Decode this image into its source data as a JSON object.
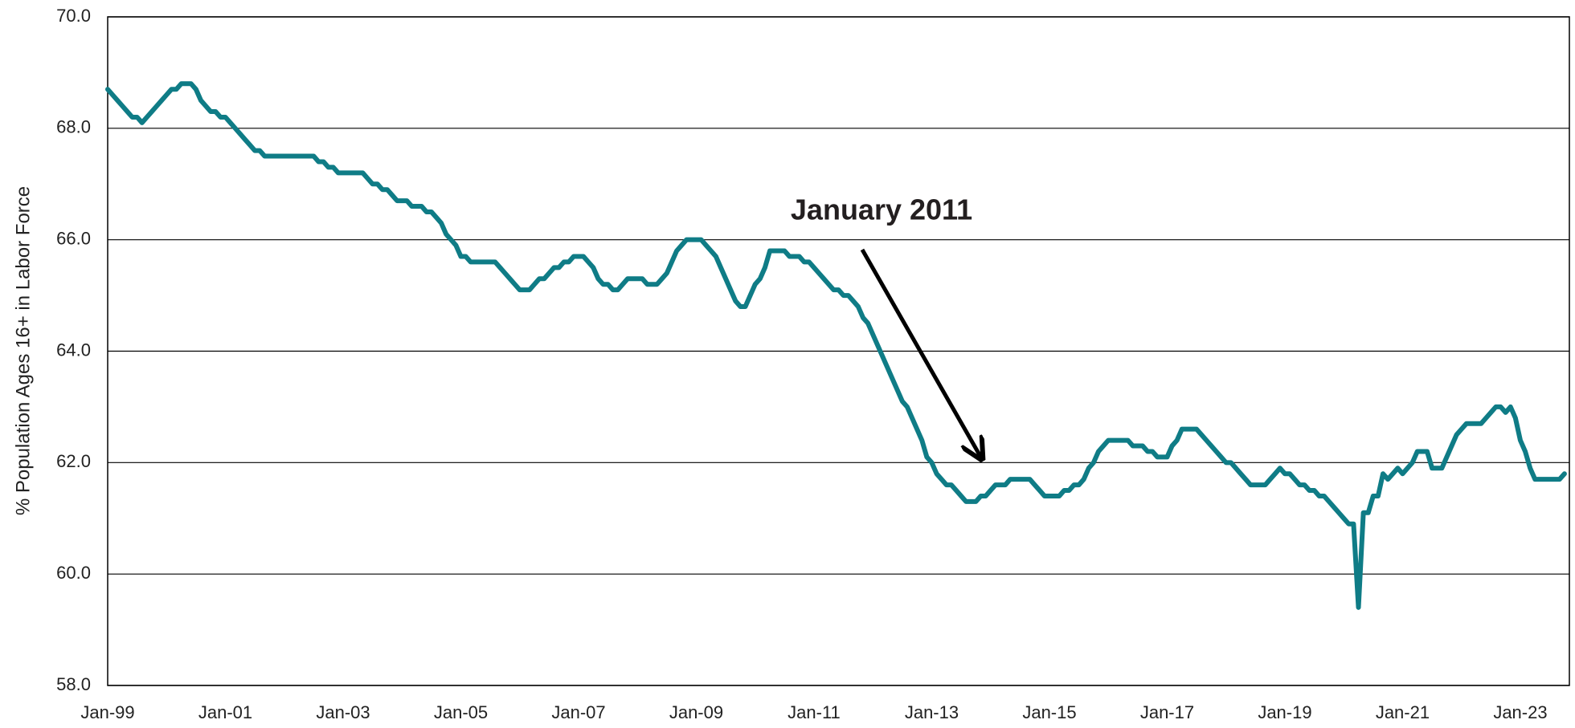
{
  "chart_data": {
    "type": "line",
    "ylabel": "% Population Ages 16+ in Labor Force",
    "annotation": "January 2011",
    "color": "#0f7c86",
    "ylim": [
      58,
      70
    ],
    "yticks": [
      {
        "value": 58,
        "label": "58.0"
      },
      {
        "value": 60,
        "label": "60.0"
      },
      {
        "value": 62,
        "label": "62.0"
      },
      {
        "value": 64,
        "label": "64.0"
      },
      {
        "value": 66,
        "label": "66.0"
      },
      {
        "value": 68,
        "label": "68.0"
      },
      {
        "value": 70,
        "label": "70.0"
      }
    ],
    "grid": true,
    "categories": [
      "Jan-99",
      null,
      null,
      null,
      null,
      null,
      null,
      null,
      null,
      null,
      null,
      null,
      null,
      null,
      null,
      null,
      null,
      null,
      null,
      null,
      null,
      null,
      null,
      null,
      "Jan-01",
      null,
      null,
      null,
      null,
      null,
      null,
      null,
      null,
      null,
      null,
      null,
      null,
      null,
      null,
      null,
      null,
      null,
      null,
      null,
      null,
      null,
      null,
      null,
      "Jan-03",
      null,
      null,
      null,
      null,
      null,
      null,
      null,
      null,
      null,
      null,
      null,
      null,
      null,
      null,
      null,
      null,
      null,
      null,
      null,
      null,
      null,
      null,
      null,
      "Jan-05",
      null,
      null,
      null,
      null,
      null,
      null,
      null,
      null,
      null,
      null,
      null,
      null,
      null,
      null,
      null,
      null,
      null,
      null,
      null,
      null,
      null,
      null,
      null,
      "Jan-07",
      null,
      null,
      null,
      null,
      null,
      null,
      null,
      null,
      null,
      null,
      null,
      null,
      null,
      null,
      null,
      null,
      null,
      null,
      null,
      null,
      null,
      null,
      null,
      "Jan-09",
      null,
      null,
      null,
      null,
      null,
      null,
      null,
      null,
      null,
      null,
      null,
      null,
      null,
      null,
      null,
      null,
      null,
      null,
      null,
      null,
      null,
      null,
      null,
      "Jan-11",
      null,
      null,
      null,
      null,
      null,
      null,
      null,
      null,
      null,
      null,
      null,
      null,
      null,
      null,
      null,
      null,
      null,
      null,
      null,
      null,
      null,
      null,
      null,
      "Jan-13",
      null,
      null,
      null,
      null,
      null,
      null,
      null,
      null,
      null,
      null,
      null,
      null,
      null,
      null,
      null,
      null,
      null,
      null,
      null,
      null,
      null,
      null,
      null,
      "Jan-15",
      null,
      null,
      null,
      null,
      null,
      null,
      null,
      null,
      null,
      null,
      null,
      null,
      null,
      null,
      null,
      null,
      null,
      null,
      null,
      null,
      null,
      null,
      null,
      "Jan-17",
      null,
      null,
      null,
      null,
      null,
      null,
      null,
      null,
      null,
      null,
      null,
      null,
      null,
      null,
      null,
      null,
      null,
      null,
      null,
      null,
      null,
      null,
      null,
      "Jan-19",
      null,
      null,
      null,
      null,
      null,
      null,
      null,
      null,
      null,
      null,
      null,
      null,
      null,
      null,
      null,
      null,
      null,
      null,
      null,
      null,
      null,
      null,
      null,
      "Jan-21",
      null,
      null,
      null,
      null,
      null,
      null,
      null,
      null,
      null,
      null,
      null,
      null,
      null,
      null,
      null,
      null,
      null,
      null,
      null,
      null,
      null,
      null,
      null,
      "Jan-23",
      null,
      null,
      null,
      null,
      null,
      null,
      null,
      null,
      null
    ],
    "values": [
      68.7,
      68.6,
      68.5,
      68.4,
      68.3,
      68.2,
      68.2,
      68.1,
      68.2,
      68.3,
      68.4,
      68.5,
      68.6,
      68.7,
      68.7,
      68.8,
      68.8,
      68.8,
      68.7,
      68.5,
      68.4,
      68.3,
      68.3,
      68.2,
      68.2,
      68.1,
      68.0,
      67.9,
      67.8,
      67.7,
      67.6,
      67.6,
      67.5,
      67.5,
      67.5,
      67.5,
      67.5,
      67.5,
      67.5,
      67.5,
      67.5,
      67.5,
      67.5,
      67.4,
      67.4,
      67.3,
      67.3,
      67.2,
      67.2,
      67.2,
      67.2,
      67.2,
      67.2,
      67.1,
      67.0,
      67.0,
      66.9,
      66.9,
      66.8,
      66.7,
      66.7,
      66.7,
      66.6,
      66.6,
      66.6,
      66.5,
      66.5,
      66.4,
      66.3,
      66.1,
      66.0,
      65.9,
      65.7,
      65.7,
      65.6,
      65.6,
      65.6,
      65.6,
      65.6,
      65.6,
      65.5,
      65.4,
      65.3,
      65.2,
      65.1,
      65.1,
      65.1,
      65.2,
      65.3,
      65.3,
      65.4,
      65.5,
      65.5,
      65.6,
      65.6,
      65.7,
      65.7,
      65.7,
      65.6,
      65.5,
      65.3,
      65.2,
      65.2,
      65.1,
      65.1,
      65.2,
      65.3,
      65.3,
      65.3,
      65.3,
      65.2,
      65.2,
      65.2,
      65.3,
      65.4,
      65.6,
      65.8,
      65.9,
      66.0,
      66.0,
      66.0,
      66.0,
      65.9,
      65.8,
      65.7,
      65.5,
      65.3,
      65.1,
      64.9,
      64.8,
      64.8,
      65.0,
      65.2,
      65.3,
      65.5,
      65.8,
      65.8,
      65.8,
      65.8,
      65.7,
      65.7,
      65.7,
      65.6,
      65.6,
      65.5,
      65.4,
      65.3,
      65.2,
      65.1,
      65.1,
      65.0,
      65.0,
      64.9,
      64.8,
      64.6,
      64.5,
      64.3,
      64.1,
      63.9,
      63.7,
      63.5,
      63.3,
      63.1,
      63.0,
      62.8,
      62.6,
      62.4,
      62.1,
      62.0,
      61.8,
      61.7,
      61.6,
      61.6,
      61.5,
      61.4,
      61.3,
      61.3,
      61.3,
      61.4,
      61.4,
      61.5,
      61.6,
      61.6,
      61.6,
      61.7,
      61.7,
      61.7,
      61.7,
      61.7,
      61.6,
      61.5,
      61.4,
      61.4,
      61.4,
      61.4,
      61.5,
      61.5,
      61.6,
      61.6,
      61.7,
      61.9,
      62.0,
      62.2,
      62.3,
      62.4,
      62.4,
      62.4,
      62.4,
      62.4,
      62.3,
      62.3,
      62.3,
      62.2,
      62.2,
      62.1,
      62.1,
      62.1,
      62.3,
      62.4,
      62.6,
      62.6,
      62.6,
      62.6,
      62.5,
      62.4,
      62.3,
      62.2,
      62.1,
      62.0,
      62.0,
      61.9,
      61.8,
      61.7,
      61.6,
      61.6,
      61.6,
      61.6,
      61.7,
      61.8,
      61.9,
      61.8,
      61.8,
      61.7,
      61.6,
      61.6,
      61.5,
      61.5,
      61.4,
      61.4,
      61.3,
      61.2,
      61.1,
      61.0,
      60.9,
      60.9,
      59.4,
      61.1,
      61.1,
      61.4,
      61.4,
      61.8,
      61.7,
      61.8,
      61.9,
      61.8,
      61.9,
      62.0,
      62.2,
      62.2,
      62.2,
      61.9,
      61.9,
      61.9,
      62.1,
      62.3,
      62.5,
      62.6,
      62.7,
      62.7,
      62.7,
      62.7,
      62.8,
      62.9,
      63.0,
      63.0,
      62.9,
      63.0,
      62.8,
      62.4,
      62.2,
      61.9,
      61.7,
      61.7,
      61.7,
      61.7,
      61.7,
      61.7,
      61.8
    ]
  }
}
